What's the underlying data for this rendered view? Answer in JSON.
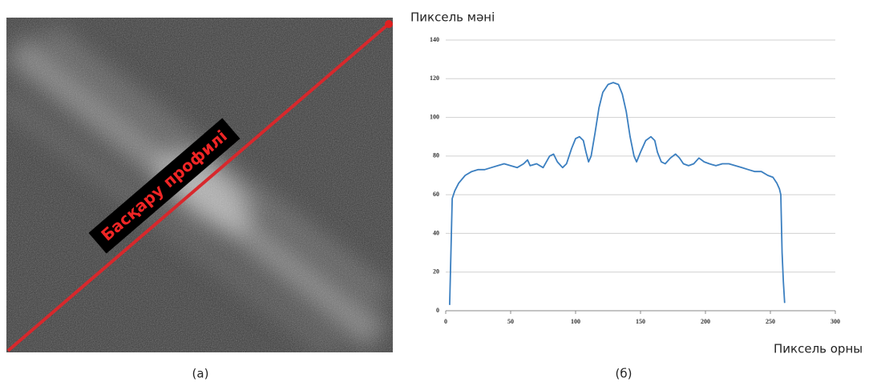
{
  "image_panel": {
    "label": "Басқару профилі",
    "caption": "(a)"
  },
  "chart_data": {
    "type": "line",
    "y_label": "Пиксель мәні",
    "x_label": "Пиксель орны",
    "caption": "(б)",
    "x": [
      3,
      4,
      5,
      7,
      10,
      15,
      20,
      25,
      30,
      35,
      40,
      45,
      50,
      55,
      60,
      63,
      65,
      70,
      75,
      80,
      83,
      86,
      90,
      93,
      97,
      100,
      103,
      106,
      108,
      110,
      112,
      115,
      118,
      121,
      125,
      129,
      133,
      136,
      139,
      142,
      145,
      147,
      150,
      154,
      158,
      161,
      163,
      166,
      169,
      173,
      177,
      180,
      183,
      187,
      191,
      195,
      199,
      203,
      208,
      213,
      218,
      223,
      228,
      233,
      238,
      243,
      248,
      252,
      255,
      257,
      258,
      259,
      260,
      261
    ],
    "values": [
      3,
      30,
      58,
      62,
      66,
      70,
      72,
      73,
      73,
      74,
      75,
      76,
      75,
      74,
      76,
      78,
      75,
      76,
      74,
      80,
      81,
      77,
      74,
      76,
      84,
      89,
      90,
      88,
      82,
      77,
      80,
      92,
      105,
      113,
      117,
      118,
      117,
      112,
      103,
      90,
      80,
      77,
      82,
      88,
      90,
      88,
      82,
      77,
      76,
      79,
      81,
      79,
      76,
      75,
      76,
      79,
      77,
      76,
      75,
      76,
      76,
      75,
      74,
      73,
      72,
      72,
      70,
      69,
      66,
      63,
      60,
      30,
      15,
      4
    ],
    "color": "#3b7fc0",
    "xlim": [
      0,
      300
    ],
    "ylim": [
      0,
      140
    ],
    "xticks": [
      0,
      50,
      100,
      150,
      200,
      250,
      300
    ],
    "yticks": [
      0,
      20,
      40,
      60,
      80,
      100,
      120,
      140
    ],
    "grid": true
  }
}
